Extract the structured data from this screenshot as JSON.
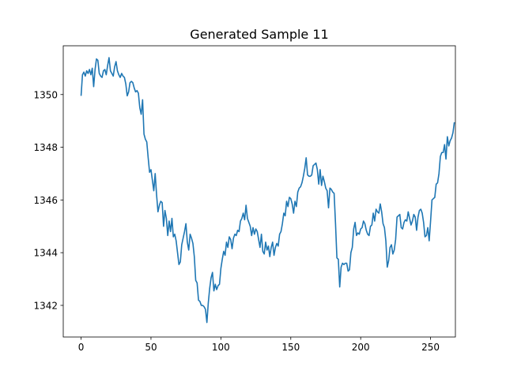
{
  "chart_data": {
    "type": "line",
    "title": "Generated Sample 11",
    "xlabel": "",
    "ylabel": "",
    "xlim": [
      -12.75,
      267.75
    ],
    "ylim": [
      1340.8,
      1351.85
    ],
    "x_ticks": [
      0,
      50,
      100,
      150,
      200,
      250
    ],
    "y_ticks": [
      1342,
      1344,
      1346,
      1348,
      1350
    ],
    "grid": false,
    "series": [
      {
        "color": "#1f77b4",
        "x_start": 0,
        "x_step": 1,
        "values": [
          1349.95,
          1350.75,
          1350.85,
          1350.7,
          1350.9,
          1350.8,
          1350.95,
          1350.75,
          1351.0,
          1350.3,
          1350.95,
          1351.35,
          1351.3,
          1350.8,
          1350.7,
          1350.65,
          1350.9,
          1350.95,
          1350.75,
          1351.1,
          1351.4,
          1350.9,
          1350.8,
          1350.7,
          1351.05,
          1351.25,
          1350.9,
          1350.75,
          1350.65,
          1350.8,
          1350.7,
          1350.65,
          1350.4,
          1349.95,
          1350.1,
          1350.45,
          1350.5,
          1350.45,
          1350.25,
          1350.1,
          1350.15,
          1350.05,
          1349.5,
          1349.25,
          1349.8,
          1348.5,
          1348.3,
          1348.2,
          1347.6,
          1347.05,
          1347.15,
          1346.75,
          1346.35,
          1347.0,
          1346.2,
          1345.55,
          1345.8,
          1345.95,
          1345.9,
          1345.0,
          1345.6,
          1345.3,
          1344.65,
          1345.2,
          1344.8,
          1345.3,
          1344.6,
          1344.7,
          1344.45,
          1344.0,
          1343.55,
          1343.65,
          1344.3,
          1344.55,
          1344.8,
          1345.1,
          1344.4,
          1344.1,
          1344.7,
          1344.55,
          1344.35,
          1343.85,
          1342.95,
          1342.85,
          1342.2,
          1342.15,
          1342.0,
          1342.0,
          1341.95,
          1341.85,
          1341.35,
          1342.1,
          1342.65,
          1343.05,
          1343.25,
          1342.55,
          1342.8,
          1342.6,
          1342.75,
          1342.8,
          1343.4,
          1343.75,
          1344.05,
          1343.9,
          1344.4,
          1344.2,
          1344.6,
          1344.5,
          1344.15,
          1344.55,
          1344.7,
          1344.65,
          1344.85,
          1344.8,
          1345.2,
          1345.3,
          1345.5,
          1345.25,
          1345.8,
          1345.3,
          1345.15,
          1345.0,
          1344.65,
          1344.95,
          1344.7,
          1344.9,
          1344.8,
          1344.5,
          1344.2,
          1344.7,
          1344.05,
          1343.95,
          1344.4,
          1344.1,
          1344.25,
          1343.85,
          1344.2,
          1344.4,
          1343.9,
          1344.2,
          1344.35,
          1344.25,
          1344.7,
          1344.8,
          1345.1,
          1345.5,
          1345.4,
          1345.95,
          1345.75,
          1346.1,
          1346.05,
          1345.85,
          1345.5,
          1345.95,
          1345.75,
          1346.3,
          1346.45,
          1346.5,
          1346.65,
          1346.9,
          1347.2,
          1347.6,
          1346.95,
          1346.9,
          1346.9,
          1346.95,
          1347.3,
          1347.35,
          1347.4,
          1347.15,
          1346.6,
          1347.15,
          1346.55,
          1346.9,
          1346.7,
          1346.45,
          1346.35,
          1345.7,
          1346.45,
          1346.4,
          1346.3,
          1346.25,
          1345.1,
          1343.8,
          1343.75,
          1342.7,
          1343.45,
          1343.6,
          1343.55,
          1343.6,
          1343.6,
          1343.3,
          1343.35,
          1344.0,
          1344.2,
          1344.9,
          1345.15,
          1344.65,
          1344.75,
          1344.7,
          1344.9,
          1344.95,
          1345.2,
          1345.1,
          1344.85,
          1344.7,
          1344.65,
          1345.0,
          1345.05,
          1345.5,
          1345.2,
          1345.65,
          1345.55,
          1345.5,
          1345.85,
          1345.55,
          1345.1,
          1344.95,
          1344.45,
          1343.45,
          1343.7,
          1344.2,
          1344.3,
          1343.95,
          1344.1,
          1344.5,
          1345.35,
          1345.4,
          1345.45,
          1344.95,
          1344.9,
          1345.15,
          1345.25,
          1345.2,
          1345.55,
          1345.3,
          1345.05,
          1345.2,
          1345.45,
          1345.35,
          1344.85,
          1345.35,
          1345.6,
          1345.65,
          1345.5,
          1345.15,
          1344.6,
          1344.65,
          1344.95,
          1344.45,
          1345.2,
          1346.0,
          1346.05,
          1346.1,
          1346.6,
          1346.65,
          1347.0,
          1347.65,
          1347.8,
          1347.8,
          1348.1,
          1347.55,
          1348.4,
          1348.05,
          1348.25,
          1348.35,
          1348.55,
          1348.95
        ]
      }
    ]
  }
}
